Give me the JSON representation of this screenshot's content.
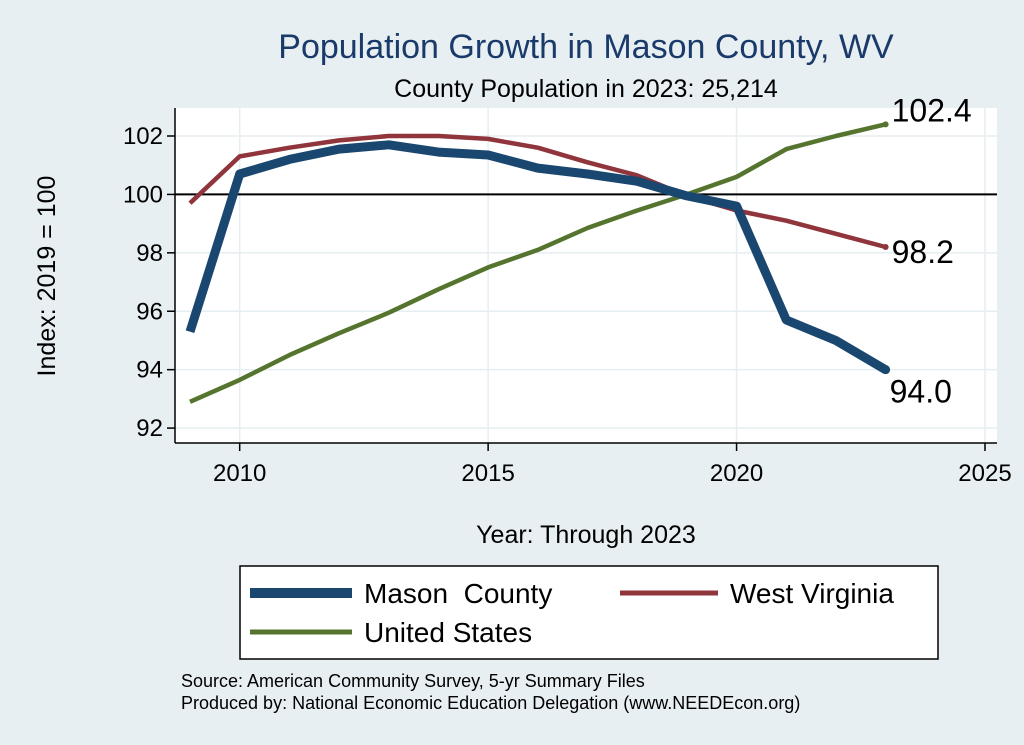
{
  "chart_data": {
    "type": "line",
    "title": "Population Growth in Mason County, WV",
    "subtitle": "County Population in 2023: 25,214",
    "xlabel": "Year: Through 2023",
    "ylabel": "Index: 2019 = 100",
    "xlim": [
      2009,
      2025
    ],
    "ylim": [
      92,
      103
    ],
    "xticks": [
      2010,
      2015,
      2020,
      2025
    ],
    "yticks": [
      92,
      94,
      96,
      98,
      100,
      102
    ],
    "reference_line": 100,
    "x": [
      2009,
      2010,
      2011,
      2012,
      2013,
      2014,
      2015,
      2016,
      2017,
      2018,
      2019,
      2020,
      2021,
      2022,
      2023
    ],
    "series": [
      {
        "name": "Mason  County",
        "color": "#1a476f",
        "values": [
          95.3,
          100.7,
          101.2,
          101.55,
          101.7,
          101.45,
          101.35,
          100.9,
          100.7,
          100.45,
          99.95,
          99.6,
          95.7,
          95.0,
          94.0
        ],
        "end_label": "94.0"
      },
      {
        "name": "West Virginia",
        "color": "#90353b",
        "values": [
          99.7,
          101.3,
          101.6,
          101.85,
          102.0,
          102.0,
          101.9,
          101.6,
          101.1,
          100.65,
          99.95,
          99.45,
          99.1,
          98.65,
          98.2
        ],
        "end_label": "98.2"
      },
      {
        "name": "United States",
        "color": "#55752f",
        "values": [
          92.9,
          93.65,
          94.5,
          95.25,
          95.95,
          96.75,
          97.5,
          98.1,
          98.85,
          99.45,
          100.0,
          100.6,
          101.55,
          102.0,
          102.4
        ],
        "end_label": "102.4"
      }
    ],
    "legend_position": "bottom",
    "source_lines": [
      "Source: American Community Survey, 5-yr Summary Files",
      "Produced by: National Economic Education Delegation (www.NEEDEcon.org)"
    ]
  }
}
